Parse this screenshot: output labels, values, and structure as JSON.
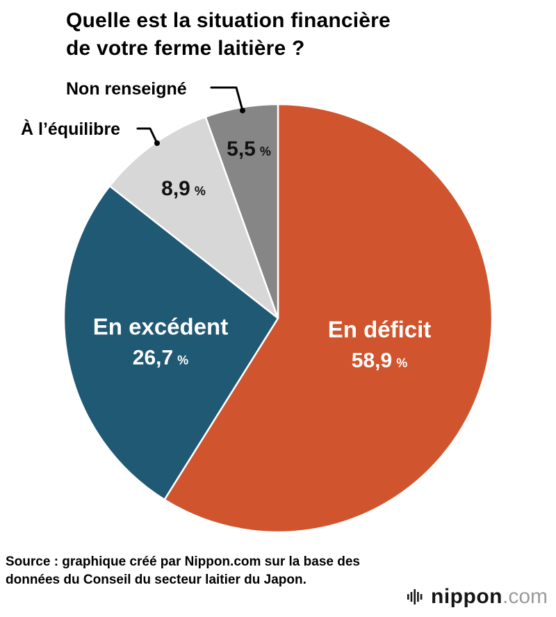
{
  "header": {
    "title_line1": "Quelle est la situation financière",
    "title_line2": "de votre ferme laitière ?"
  },
  "chart_data": {
    "type": "pie",
    "title": "Quelle est la situation financière de votre ferme laitière ?",
    "unit": "%",
    "start_angle_deg": 0,
    "direction": "clockwise",
    "slices": [
      {
        "label": "En déficit",
        "value": 58.9,
        "display_value": "58,9",
        "color": "#d0552e",
        "label_placement": "inside",
        "text_color": "#ffffff"
      },
      {
        "label": "En excédent",
        "value": 26.7,
        "display_value": "26,7",
        "color": "#1f5974",
        "label_placement": "inside",
        "text_color": "#ffffff"
      },
      {
        "label": "À l’équilibre",
        "value": 8.9,
        "display_value": "8,9",
        "color": "#d7d7d7",
        "label_placement": "callout",
        "text_color": "#000000"
      },
      {
        "label": "Non renseigné",
        "value": 5.5,
        "display_value": "5,5",
        "color": "#868686",
        "label_placement": "callout",
        "text_color": "#000000"
      }
    ]
  },
  "footer": {
    "source": "Source : graphique créé par Nippon.com sur la base des données du Conseil du secteur laitier du Japon.",
    "logo_brand": "nippon",
    "logo_tld": ".com"
  }
}
